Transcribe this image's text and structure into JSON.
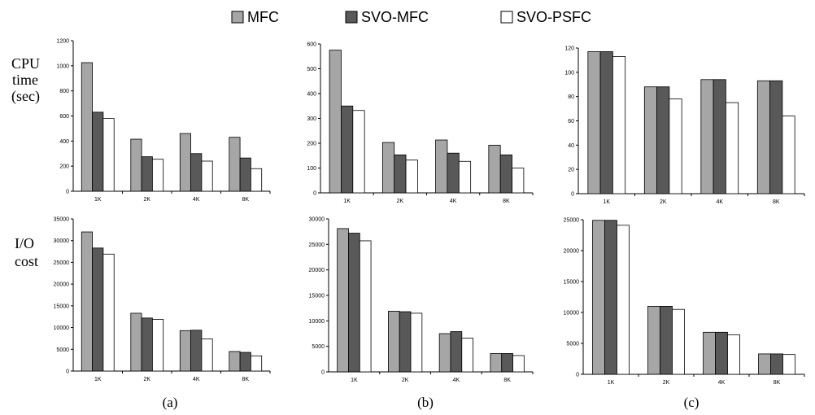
{
  "legend": [
    {
      "label": "MFC",
      "color": "#a6a6a6"
    },
    {
      "label": "SVO-MFC",
      "color": "#595959"
    },
    {
      "label": "SVO-PSFC",
      "color": "#ffffff"
    }
  ],
  "row_labels": [
    [
      "CPU",
      "time",
      "(sec)"
    ],
    [
      "I/O",
      "cost"
    ]
  ],
  "panel_labels": [
    "(a)",
    "(b)",
    "(c)"
  ],
  "chart_data": [
    {
      "type": "bar",
      "categories": [
        "1K",
        "2K",
        "4K",
        "8K"
      ],
      "ylim": [
        0,
        1200
      ],
      "yticks": [
        0,
        200,
        400,
        600,
        800,
        1000,
        1200
      ],
      "series": [
        {
          "name": "MFC",
          "values": [
            1025,
            415,
            460,
            430
          ]
        },
        {
          "name": "SVO-MFC",
          "values": [
            630,
            275,
            300,
            265
          ]
        },
        {
          "name": "SVO-PSFC",
          "values": [
            580,
            255,
            240,
            180
          ]
        }
      ]
    },
    {
      "type": "bar",
      "categories": [
        "1K",
        "2K",
        "4K",
        "8K"
      ],
      "ylim": [
        0,
        600
      ],
      "yticks": [
        0,
        100,
        200,
        300,
        400,
        500,
        600
      ],
      "series": [
        {
          "name": "MFC",
          "values": [
            575,
            203,
            213,
            192
          ]
        },
        {
          "name": "SVO-MFC",
          "values": [
            350,
            153,
            160,
            153
          ]
        },
        {
          "name": "SVO-PSFC",
          "values": [
            332,
            132,
            127,
            100
          ]
        }
      ]
    },
    {
      "type": "bar",
      "categories": [
        "1K",
        "2K",
        "4K",
        "8K"
      ],
      "ylim": [
        0,
        120
      ],
      "yticks": [
        0,
        20,
        40,
        60,
        80,
        100,
        120
      ],
      "series": [
        {
          "name": "MFC",
          "values": [
            117,
            88,
            94,
            93
          ]
        },
        {
          "name": "SVO-MFC",
          "values": [
            117,
            88,
            94,
            93
          ]
        },
        {
          "name": "SVO-PSFC",
          "values": [
            113,
            78,
            75,
            64
          ]
        }
      ]
    },
    {
      "type": "bar",
      "categories": [
        "1K",
        "2K",
        "4K",
        "8K"
      ],
      "ylim": [
        0,
        35000
      ],
      "yticks": [
        0,
        5000,
        10000,
        15000,
        20000,
        25000,
        30000,
        35000
      ],
      "series": [
        {
          "name": "MFC",
          "values": [
            32000,
            13300,
            9300,
            4500
          ]
        },
        {
          "name": "SVO-MFC",
          "values": [
            28300,
            12200,
            9400,
            4300
          ]
        },
        {
          "name": "SVO-PSFC",
          "values": [
            26900,
            11900,
            7400,
            3500
          ]
        }
      ]
    },
    {
      "type": "bar",
      "categories": [
        "1K",
        "2K",
        "4K",
        "8K"
      ],
      "ylim": [
        0,
        30000
      ],
      "yticks": [
        0,
        5000,
        10000,
        15000,
        20000,
        25000,
        30000
      ],
      "series": [
        {
          "name": "MFC",
          "values": [
            28100,
            11900,
            7500,
            3600
          ]
        },
        {
          "name": "SVO-MFC",
          "values": [
            27200,
            11800,
            7900,
            3600
          ]
        },
        {
          "name": "SVO-PSFC",
          "values": [
            25700,
            11500,
            6600,
            3200
          ]
        }
      ]
    },
    {
      "type": "bar",
      "categories": [
        "1K",
        "2K",
        "4K",
        "8K"
      ],
      "ylim": [
        0,
        25000
      ],
      "yticks": [
        0,
        5000,
        10000,
        15000,
        20000,
        25000
      ],
      "series": [
        {
          "name": "MFC",
          "values": [
            24900,
            11000,
            6800,
            3300
          ]
        },
        {
          "name": "SVO-MFC",
          "values": [
            24900,
            11000,
            6800,
            3300
          ]
        },
        {
          "name": "SVO-PSFC",
          "values": [
            24100,
            10500,
            6400,
            3200
          ]
        }
      ]
    }
  ]
}
